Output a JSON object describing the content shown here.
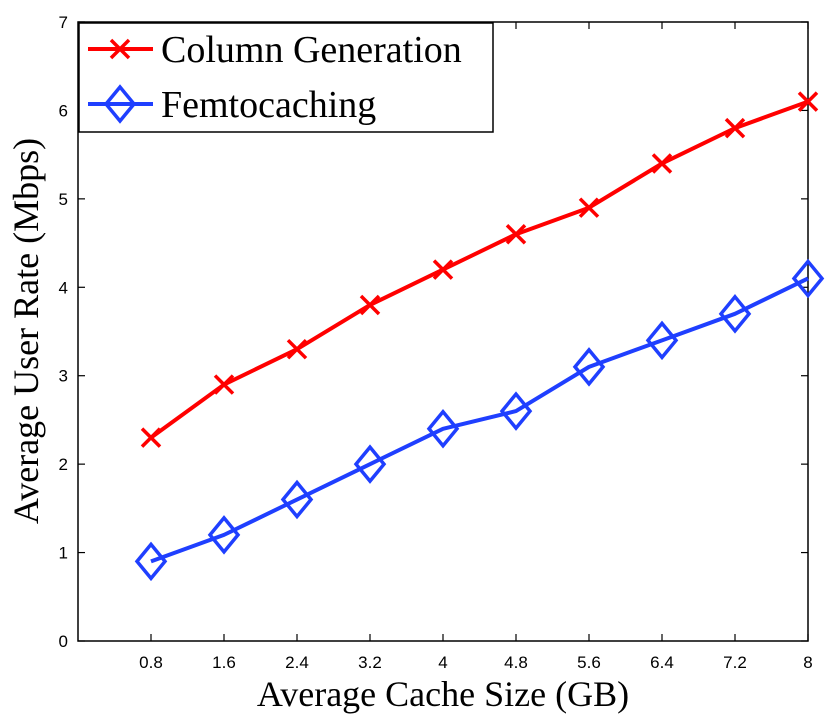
{
  "chart_data": {
    "type": "line",
    "title": "",
    "xlabel": "Average Cache Size (GB)",
    "ylabel": "Average User Rate (Mbps)",
    "categories": [
      "0.8",
      "1.6",
      "2.4",
      "3.2",
      "4",
      "4.8",
      "5.6",
      "6.4",
      "7.2",
      "8"
    ],
    "x": [
      0.8,
      1.6,
      2.4,
      3.2,
      4.0,
      4.8,
      5.6,
      6.4,
      7.2,
      8.0
    ],
    "xlim": [
      0,
      8
    ],
    "ylim": [
      0,
      7
    ],
    "yticks": [
      "0",
      "1",
      "2",
      "3",
      "4",
      "5",
      "6",
      "7"
    ],
    "grid": false,
    "legend_position": "top-left",
    "series": [
      {
        "name": "Column Generation",
        "color": "#ff0000",
        "marker": "x",
        "values": [
          2.3,
          2.9,
          3.3,
          3.8,
          4.2,
          4.6,
          4.9,
          5.4,
          5.8,
          6.1
        ]
      },
      {
        "name": "Femtocaching",
        "color": "#1f3fff",
        "marker": "diamond",
        "values": [
          0.9,
          1.2,
          1.6,
          2.0,
          2.4,
          2.6,
          3.1,
          3.4,
          3.7,
          4.1
        ]
      }
    ]
  }
}
